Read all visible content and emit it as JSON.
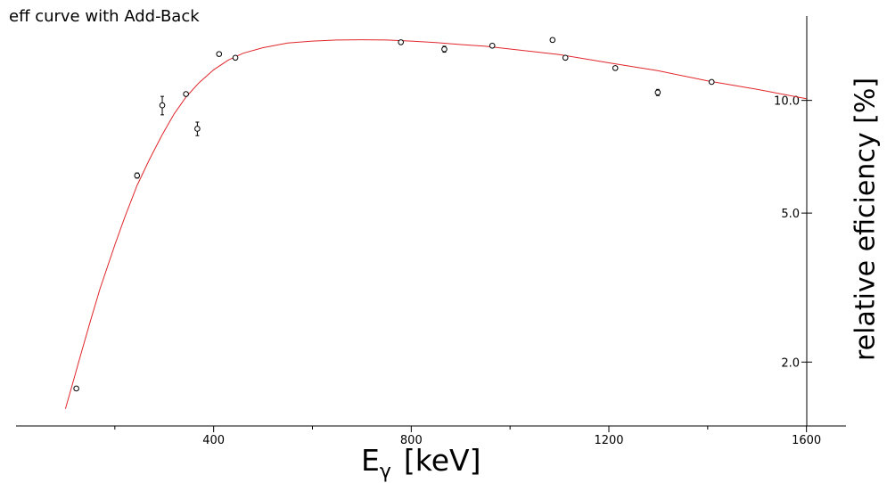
{
  "chart_data": {
    "type": "scatter",
    "title": "eff curve with Add-Back",
    "xlabel": {
      "main": "E",
      "sub": "γ",
      "unit": "[keV]"
    },
    "ylabel": "relative eficiency [%]",
    "xlim": [
      0,
      1680
    ],
    "ylim": [
      1.35,
      16.8
    ],
    "y_scale": "log",
    "x_ticks": [
      400,
      800,
      1200,
      1600
    ],
    "x_ticks_minor": [
      200,
      600,
      1000,
      1400
    ],
    "x_tick_labels": [
      "400",
      "800",
      "1200",
      "1600"
    ],
    "y_ticks": [
      2.0,
      5.0,
      10.0
    ],
    "y_tick_labels": [
      "2.0",
      "5.0",
      "10.0"
    ],
    "y_axis_side": "right",
    "grid": false,
    "series": [
      {
        "type": "scatter",
        "marker": "open-circle",
        "color": "#000000",
        "points": [
          {
            "x": 122,
            "y": 1.7,
            "err": 0.02
          },
          {
            "x": 245,
            "y": 6.3,
            "err": 0.1
          },
          {
            "x": 296,
            "y": 9.7,
            "err": 0.55
          },
          {
            "x": 344,
            "y": 10.4,
            "err": 0.1
          },
          {
            "x": 367,
            "y": 8.4,
            "err": 0.35
          },
          {
            "x": 411,
            "y": 13.3,
            "err": 0.12
          },
          {
            "x": 444,
            "y": 13.0,
            "err": 0.15
          },
          {
            "x": 779,
            "y": 14.3,
            "err": 0.1
          },
          {
            "x": 867,
            "y": 13.7,
            "err": 0.25
          },
          {
            "x": 964,
            "y": 14.0,
            "err": 0.12
          },
          {
            "x": 1086,
            "y": 14.5,
            "err": 0.12
          },
          {
            "x": 1112,
            "y": 13.0,
            "err": 0.12
          },
          {
            "x": 1213,
            "y": 12.2,
            "err": 0.12
          },
          {
            "x": 1299,
            "y": 10.5,
            "err": 0.2
          },
          {
            "x": 1408,
            "y": 11.2,
            "err": 0.1
          }
        ]
      },
      {
        "type": "line",
        "color": "#e0262b",
        "points": [
          [
            100,
            1.5
          ],
          [
            115,
            1.76
          ],
          [
            130,
            2.07
          ],
          [
            150,
            2.56
          ],
          [
            170,
            3.14
          ],
          [
            200,
            4.11
          ],
          [
            220,
            4.87
          ],
          [
            245,
            5.93
          ],
          [
            270,
            6.95
          ],
          [
            296,
            8.1
          ],
          [
            320,
            9.2
          ],
          [
            344,
            10.2
          ],
          [
            370,
            11.13
          ],
          [
            400,
            12.07
          ],
          [
            430,
            12.82
          ],
          [
            460,
            13.37
          ],
          [
            500,
            13.83
          ],
          [
            550,
            14.23
          ],
          [
            600,
            14.4
          ],
          [
            650,
            14.5
          ],
          [
            700,
            14.52
          ],
          [
            750,
            14.5
          ],
          [
            800,
            14.4
          ],
          [
            850,
            14.27
          ],
          [
            900,
            14.1
          ],
          [
            950,
            13.95
          ],
          [
            1000,
            13.72
          ],
          [
            1100,
            13.25
          ],
          [
            1200,
            12.6
          ],
          [
            1300,
            12.0
          ],
          [
            1400,
            11.27
          ],
          [
            1500,
            10.7
          ],
          [
            1600,
            10.1
          ]
        ]
      }
    ]
  }
}
